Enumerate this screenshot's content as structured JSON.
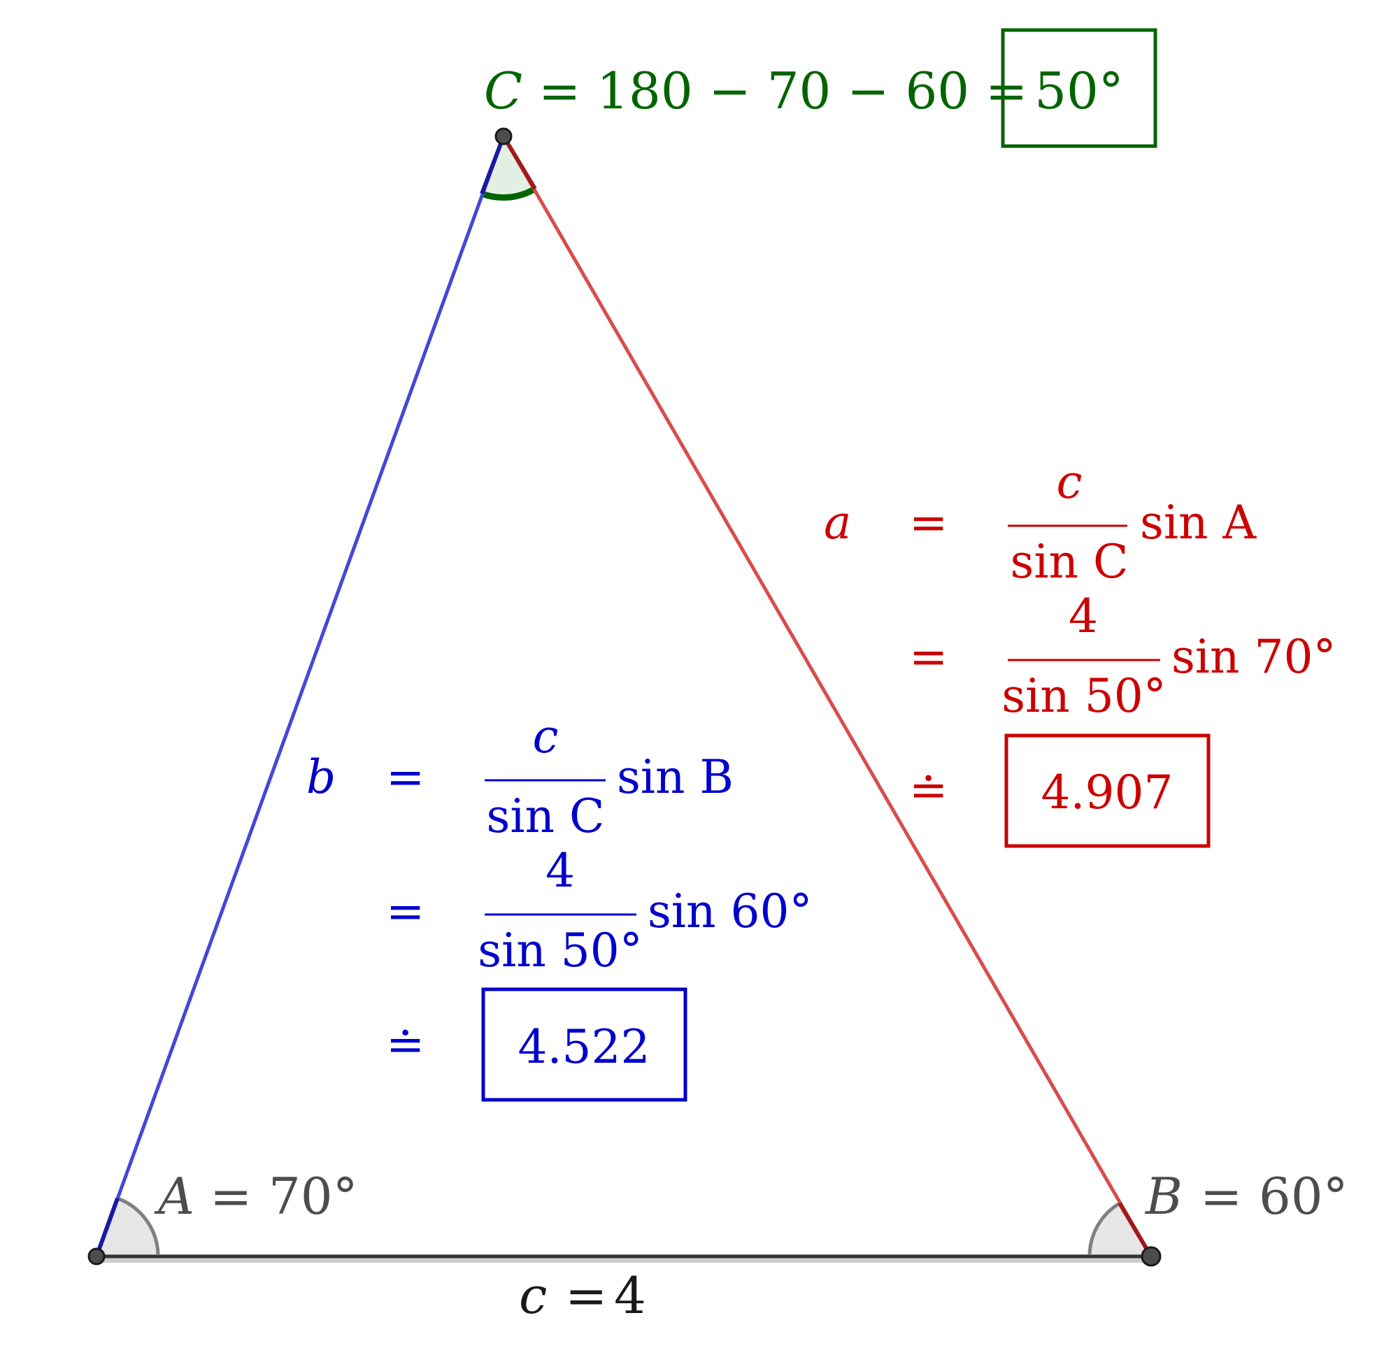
{
  "colors": {
    "side_a": "#cc0000",
    "side_b": "#0000cc",
    "angle_c": "#006400",
    "side_c": "#1a1a1a",
    "gray_label": "#4d4d4d"
  },
  "vertices": {
    "A": "A",
    "B": "B",
    "C": "C"
  },
  "side_c_label": {
    "var": "c",
    "eq": "=",
    "val": "4"
  },
  "angle_A_label": {
    "var": "A",
    "eq": "=",
    "val": "70°"
  },
  "angle_B_label": {
    "var": "B",
    "eq": "=",
    "val": "60°"
  },
  "angle_C_calc": {
    "var": "C",
    "expr": "= 180 − 70 − 60 =",
    "result": "50°"
  },
  "side_a_calc": {
    "lhs": "a",
    "line1": {
      "rel": "=",
      "num": "c",
      "den": "sin C",
      "tail": "sin A"
    },
    "line2": {
      "rel": "=",
      "num": "4",
      "den": "sin 50°",
      "tail": "sin 70°"
    },
    "line3": {
      "rel": "≐",
      "result": "4.907"
    }
  },
  "side_b_calc": {
    "lhs": "b",
    "line1": {
      "rel": "=",
      "num": "c",
      "den": "sin C",
      "tail": "sin B"
    },
    "line2": {
      "rel": "=",
      "num": "4",
      "den": "sin 50°",
      "tail": "sin 60°"
    },
    "line3": {
      "rel": "≐",
      "result": "4.522"
    }
  }
}
